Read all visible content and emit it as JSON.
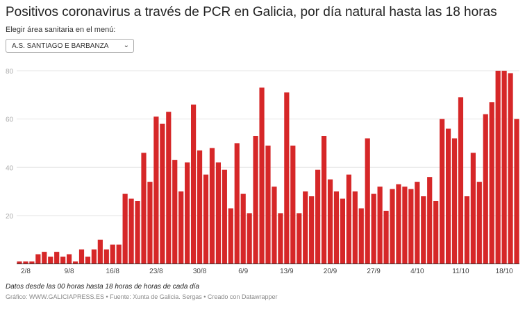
{
  "chart_data": {
    "type": "bar",
    "title": "Positivos coronavirus a través de PCR en Galicia, por día natural hasta las 18 horas",
    "start_date": "1/8",
    "categories": [
      "1/8",
      "2/8",
      "3/8",
      "4/8",
      "5/8",
      "6/8",
      "7/8",
      "8/8",
      "9/8",
      "10/8",
      "11/8",
      "12/8",
      "13/8",
      "14/8",
      "15/8",
      "16/8",
      "17/8",
      "18/8",
      "19/8",
      "20/8",
      "21/8",
      "22/8",
      "23/8",
      "24/8",
      "25/8",
      "26/8",
      "27/8",
      "28/8",
      "29/8",
      "30/8",
      "31/8",
      "1/9",
      "2/9",
      "3/9",
      "4/9",
      "5/9",
      "6/9",
      "7/9",
      "8/9",
      "9/9",
      "10/9",
      "11/9",
      "12/9",
      "13/9",
      "14/9",
      "15/9",
      "16/9",
      "17/9",
      "18/9",
      "19/9",
      "20/9",
      "21/9",
      "22/9",
      "23/9",
      "24/9",
      "25/9",
      "26/9",
      "27/9",
      "28/9",
      "29/9",
      "30/9",
      "1/10",
      "2/10",
      "3/10",
      "4/10",
      "5/10",
      "6/10",
      "7/10",
      "8/10",
      "9/10",
      "10/10",
      "11/10",
      "12/10",
      "13/10",
      "14/10",
      "15/10",
      "16/10",
      "17/10",
      "18/10",
      "19/10",
      "20/10"
    ],
    "values": [
      1,
      1,
      1,
      4,
      5,
      3,
      5,
      3,
      4,
      1,
      6,
      3,
      6,
      10,
      6,
      8,
      8,
      29,
      27,
      26,
      46,
      34,
      61,
      58,
      63,
      43,
      30,
      42,
      66,
      47,
      37,
      48,
      42,
      39,
      23,
      50,
      29,
      21,
      53,
      73,
      49,
      32,
      21,
      71,
      49,
      21,
      30,
      28,
      39,
      53,
      35,
      30,
      27,
      37,
      30,
      23,
      52,
      29,
      32,
      22,
      31,
      33,
      32,
      31,
      34,
      28,
      36,
      26,
      60,
      56,
      52,
      69,
      28,
      46,
      34,
      62,
      67,
      80,
      80,
      79,
      60
    ],
    "x_ticks": [
      "2/8",
      "9/8",
      "16/8",
      "23/8",
      "30/8",
      "6/9",
      "13/9",
      "20/9",
      "27/9",
      "4/10",
      "11/10",
      "18/10"
    ],
    "y_ticks": [
      20,
      40,
      60,
      80
    ],
    "ylim": [
      0,
      80
    ],
    "grid": true,
    "color": "#d62728"
  },
  "header": {
    "subtitle": "Elegir área sanitaria en el menú:",
    "select_value": "A.S. SANTIAGO E BARBANZA"
  },
  "footer": {
    "note": "Datos desde las 00 horas hasta 18 horas de horas de cada día",
    "credits": "Gráfico: WWW.GALICIAPRESS.ES • Fuente: Xunta de Galicia. Sergas • Creado con Datawrapper"
  }
}
